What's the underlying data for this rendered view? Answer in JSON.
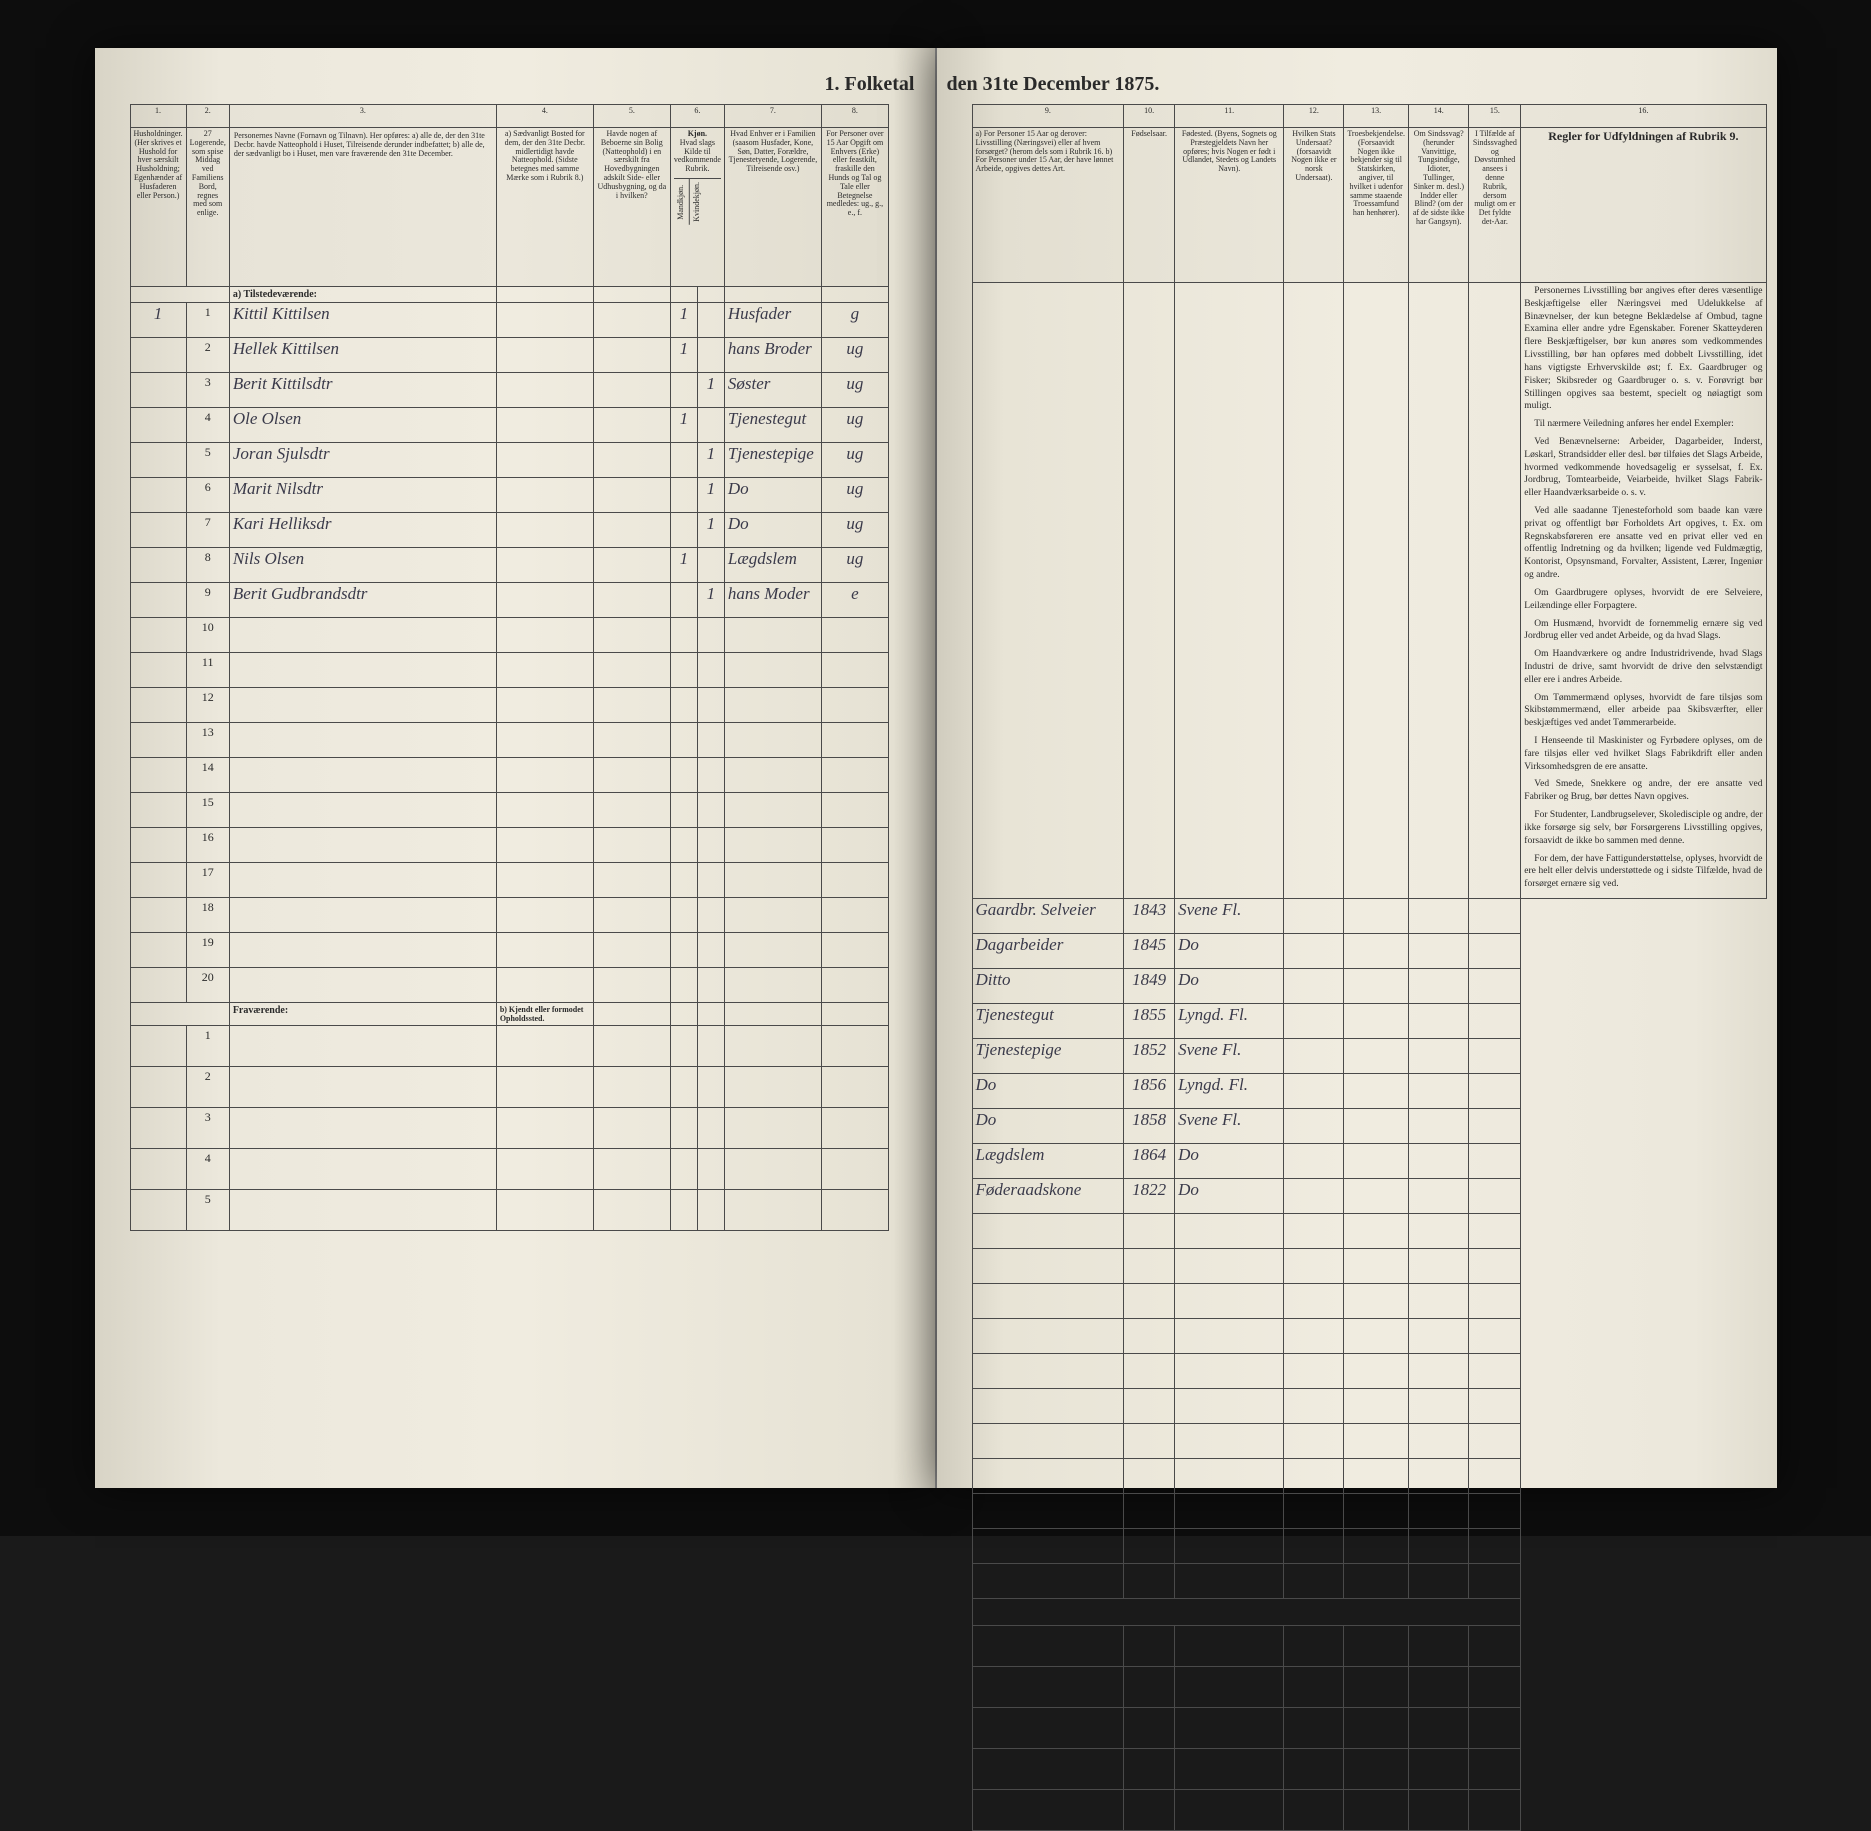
{
  "document": {
    "title_left": "1. Folketal",
    "title_right": "den 31te December 1875.",
    "type": "census-ledger",
    "year": 1875,
    "background_color": "#f0ece0",
    "border_color": "#4a4a4a",
    "ink_color": "#3a3a4a",
    "print_color": "#2a2a2a"
  },
  "left_columns": {
    "c1": "1.",
    "c2": "2.",
    "c3": "3.",
    "c4": "4.",
    "c5": "5.",
    "c6": "6.",
    "c7": "7.",
    "c8": "8.",
    "h1": "Husholdninger.\n(Her skrives et Hushold for hver særskilt Husholdning; Egenhænder af Husfaderen eller Person.)",
    "h2": "27 Logerende, som spise Middag ved Familiens Bord, regnes med som enlige.",
    "h3": "Personernes Navne (Fornavn og Tilnavn).\nHer opføres:\na) alle de, der den 31te Decbr. havde Natteophold i Huset, Tilreisende derunder indbefattet;\nb) alle de, der sædvanligt bo i Huset, men vare fraværende den 31te December.",
    "h4": "a) Sædvanligt Bosted for dem, der den 31te Decbr. midlertidigt havde Natteophold.\n(Sidste betegnes med samme Mærke som i Rubrik 8.)",
    "h5": "Havde nogen af Beboerne sin Bolig (Natteophold) i en særskilt fra Hovedbygningen adskilt Side- eller Udhusbygning, og da i hvilken?",
    "h6a": "Kjøn.",
    "h6b": "Hvad slags Kilde til vedkommende Rubrik.",
    "h6_m": "Mandkjøn.",
    "h6_k": "Kvindekjøn.",
    "h7": "Hvad Enhver er i Familien\n(saasom Husfader, Kone, Søn, Datter, Forældre, Tjenestetyende, Logerende, Tilreisende osv.)",
    "h8": "For Personer over 15 Aar Opgift om Enhvers (Erke) eller feastkilt, fraskille den Hunds og Tal og Tale eller Betegnelse medledes:\nug., g., e., f."
  },
  "right_columns": {
    "c9": "9.",
    "c10": "10.",
    "c11": "11.",
    "c12": "12.",
    "c13": "13.",
    "c14": "14.",
    "c15": "15.",
    "c16": "16.",
    "h9": "a) For Personer 15 Aar og derover: Livsstilling (Næringsvei) eller af hvem forsørget? (herom dels som i Rubrik 16.\nb) For Personer under 15 Aar, der have lønnet Arbeide, opgives dettes Art.",
    "h10": "Fødselsaar.",
    "h11": "Fødested.\n(Byens, Sognets og Præstegjeldets Navn her opføres; hvis Nogen er født i Udlandet, Stedets og Landets Navn).",
    "h12": "Hvilken Stats Undersaat?\n(forsaavidt Nogen ikke er norsk Undersaat).",
    "h13": "Troesbekjendelse.\n(Forsaavidt Nogen ikke bekjender sig til Statskirken, angiver, til hvilket i udenfor samme staaende Troessamfund han henhører).",
    "h14": "Om Sindssvag? (herunder Vanvittige, Tungsindige, Idioter, Tullinger, Sinker m. desl.) Indder eller Blind? (om der af de sidste ikke har Gangsyn).",
    "h15": "I Tilfælde af Sindssvaghed og Døvstumhed ansees i denne Rubrik, dersom muligt om er Det fyldte det-Aar.",
    "h16": "Regler for Udfyldningen\naf\nRubrik 9."
  },
  "section_labels": {
    "tilstedevarende": "a) Tilstedeværende:",
    "fravaerende": "Fraværende:",
    "opholdssted": "b) Kjendt eller formodet Opholdssted."
  },
  "rows": [
    {
      "n": "1",
      "name": "Kittil Kittilsen",
      "c5": "1",
      "c6": "",
      "role": "Husfader",
      "status": "g",
      "occ": "Gaardbr. Selveier",
      "year": "1843",
      "place": "Svene Fl."
    },
    {
      "n": "2",
      "name": "Hellek Kittilsen",
      "c5": "1",
      "c6": "",
      "role": "hans Broder",
      "status": "ug",
      "occ": "Dagarbeider",
      "year": "1845",
      "place": "Do"
    },
    {
      "n": "3",
      "name": "Berit Kittilsdtr",
      "c5": "",
      "c6": "1",
      "role": "Søster",
      "status": "ug",
      "occ": "Ditto",
      "year": "1849",
      "place": "Do"
    },
    {
      "n": "4",
      "name": "Ole Olsen",
      "c5": "1",
      "c6": "",
      "role": "Tjenestegut",
      "status": "ug",
      "occ": "Tjenestegut",
      "year": "1855",
      "place": "Lyngd. Fl."
    },
    {
      "n": "5",
      "name": "Joran Sjulsdtr",
      "c5": "",
      "c6": "1",
      "role": "Tjenestepige",
      "status": "ug",
      "occ": "Tjenestepige",
      "year": "1852",
      "place": "Svene Fl."
    },
    {
      "n": "6",
      "name": "Marit Nilsdtr",
      "c5": "",
      "c6": "1",
      "role": "Do",
      "status": "ug",
      "occ": "Do",
      "year": "1856",
      "place": "Lyngd. Fl."
    },
    {
      "n": "7",
      "name": "Kari Helliksdr",
      "c5": "",
      "c6": "1",
      "role": "Do",
      "status": "ug",
      "occ": "Do",
      "year": "1858",
      "place": "Svene Fl."
    },
    {
      "n": "8",
      "name": "Nils Olsen",
      "c5": "1",
      "c6": "",
      "role": "Lægdslem",
      "status": "ug",
      "occ": "Lægdslem",
      "year": "1864",
      "place": "Do"
    },
    {
      "n": "9",
      "name": "Berit Gudbrandsdtr",
      "c5": "",
      "c6": "1",
      "role": "hans Moder",
      "status": "e",
      "occ": "Føderaadskone",
      "year": "1822",
      "place": "Do"
    }
  ],
  "empty_rows": [
    "10",
    "11",
    "12",
    "13",
    "14",
    "15",
    "16",
    "17",
    "18",
    "19",
    "20"
  ],
  "fravaer_rows": [
    "1",
    "2",
    "3",
    "4",
    "5"
  ],
  "instructions": {
    "title": "",
    "paragraphs": [
      "Personernes Livsstilling bør angives efter deres væsentlige Beskjæftigelse eller Næringsvei med Udelukkelse af Binævnelser, der kun betegne Beklædelse af Ombud, tagne Examina eller andre ydre Egenskaber. Forener Skatteyderen flere Beskjæftigelser, bør kun anøres som vedkommendes Livsstilling, bør han opføres med dobbelt Livsstilling, idet hans vigtigste Erhvervskilde øst; f. Ex. Gaardbruger og Fisker; Skibsreder og Gaardbruger o. s. v. Forøvrigt bør Stillingen opgives saa bestemt, specielt og nøiagtigt som muligt.",
      "Til nærmere Veiledning anføres her endel Exempler:",
      "Ved Benævnelserne: Arbeider, Dagarbeider, Inderst, Løskarl, Strandsidder eller desl. bør tilføies det Slags Arbeide, hvormed vedkommende hovedsagelig er sysselsat, f. Ex. Jordbrug, Tomtearbeide, Veiarbeide, hvilket Slags Fabrik- eller Haandværksarbeide o. s. v.",
      "Ved alle saadanne Tjenesteforhold som baade kan være privat og offentligt bør Forholdets Art opgives, t. Ex. om Regnskabsføreren ere ansatte ved en privat eller ved en offentlig Indretning og da hvilken; ligende ved Fuldmægtig, Kontorist, Opsynsmand, Forvalter, Assistent, Lærer, Ingeniør og andre.",
      "Om Gaardbrugere oplyses, hvorvidt de ere Selveiere, Leilændinge eller Forpagtere.",
      "Om Husmænd, hvorvidt de fornemmelig ernære sig ved Jordbrug eller ved andet Arbeide, og da hvad Slags.",
      "Om Haandværkere og andre Industridrivende, hvad Slags Industri de drive, samt hvorvidt de drive den selvstændigt eller ere i andres Arbeide.",
      "Om Tømmermænd oplyses, hvorvidt de fare tilsjøs som Skibstømmermænd, eller arbeide paa Skibsværfter, eller beskjæftiges ved andet Tømmerarbeide.",
      "I Henseende til Maskinister og Fyrbødere oplyses, om de fare tilsjøs eller ved hvilket Slags Fabrikdrift eller anden Virksomhedsgren de ere ansatte.",
      "Ved Smede, Snekkere og andre, der ere ansatte ved Fabriker og Brug, bør dettes Navn opgives.",
      "For Studenter, Landbrugselever, Skoledisciple og andre, der ikke forsørge sig selv, bør Forsørgerens Livsstilling opgives, forsaavidt de ikke bo sammen med denne.",
      "For dem, der have Fattigunderstøttelse, oplyses, hvorvidt de ere helt eller delvis understøttede og i sidste Tilfælde, hvad de forsørget ernære sig ved."
    ]
  }
}
